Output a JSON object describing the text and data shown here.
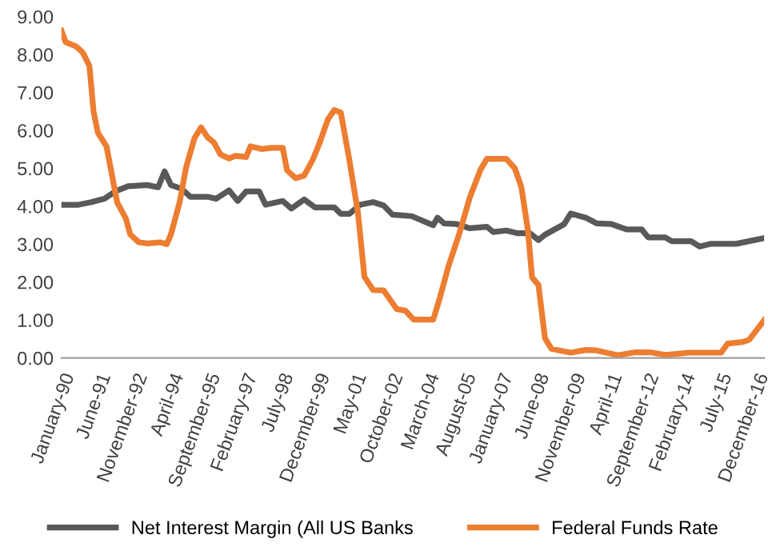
{
  "chart_data": {
    "type": "line",
    "legend": "bottom",
    "grid": false,
    "marker": "none",
    "line_style": "solid",
    "xlim": [
      "1990-01",
      "2017-04"
    ],
    "xticks": [
      {
        "value": "1990-01",
        "label": "January-90"
      },
      {
        "value": "1991-06",
        "label": "June-91"
      },
      {
        "value": "1992-11",
        "label": "November-92"
      },
      {
        "value": "1994-04",
        "label": "April-94"
      },
      {
        "value": "1995-09",
        "label": "September-95"
      },
      {
        "value": "1997-02",
        "label": "February-97"
      },
      {
        "value": "1998-07",
        "label": "July-98"
      },
      {
        "value": "1999-12",
        "label": "December-99"
      },
      {
        "value": "2001-05",
        "label": "May-01"
      },
      {
        "value": "2002-10",
        "label": "October-02"
      },
      {
        "value": "2004-03",
        "label": "March-04"
      },
      {
        "value": "2005-08",
        "label": "August-05"
      },
      {
        "value": "2007-01",
        "label": "January-07"
      },
      {
        "value": "2008-06",
        "label": "June-08"
      },
      {
        "value": "2009-11",
        "label": "November-09"
      },
      {
        "value": "2011-04",
        "label": "April-11"
      },
      {
        "value": "2012-09",
        "label": "September-12"
      },
      {
        "value": "2014-02",
        "label": "February-14"
      },
      {
        "value": "2015-07",
        "label": "July-15"
      },
      {
        "value": "2016-12",
        "label": "December-16"
      }
    ],
    "ylim": [
      0,
      9
    ],
    "yticks": [
      {
        "value": 0,
        "label": "0.00"
      },
      {
        "value": 1,
        "label": "1.00"
      },
      {
        "value": 2,
        "label": "2.00"
      },
      {
        "value": 3,
        "label": "3.00"
      },
      {
        "value": 4,
        "label": "4.00"
      },
      {
        "value": 5,
        "label": "5.00"
      },
      {
        "value": 6,
        "label": "6.00"
      },
      {
        "value": 7,
        "label": "7.00"
      },
      {
        "value": 8,
        "label": "8.00"
      },
      {
        "value": 9,
        "label": "9.00"
      }
    ],
    "series": [
      {
        "name": "Net Interest Margin (All US Banks",
        "color": "#595959",
        "x": [
          "1990-01",
          "1990-09",
          "1991-03",
          "1991-09",
          "1992-02",
          "1992-08",
          "1993-05",
          "1993-10",
          "1994-01",
          "1994-04",
          "1994-09",
          "1995-01",
          "1995-09",
          "1996-01",
          "1996-07",
          "1996-11",
          "1997-03",
          "1997-09",
          "1997-12",
          "1998-08",
          "1998-12",
          "1999-06",
          "1999-11",
          "2000-08",
          "2000-11",
          "2001-03",
          "2001-08",
          "2002-02",
          "2002-07",
          "2002-11",
          "2003-08",
          "2004-06",
          "2004-08",
          "2004-11",
          "2005-05",
          "2005-11",
          "2006-07",
          "2006-10",
          "2007-04",
          "2007-09",
          "2008-03",
          "2008-07",
          "2008-10",
          "2009-07",
          "2009-10",
          "2010-05",
          "2010-10",
          "2011-05",
          "2011-12",
          "2012-07",
          "2012-10",
          "2013-06",
          "2013-09",
          "2014-06",
          "2014-10",
          "2015-03",
          "2016-03",
          "2017-03"
        ],
        "values": [
          4.04,
          4.04,
          4.11,
          4.2,
          4.39,
          4.53,
          4.56,
          4.5,
          4.92,
          4.56,
          4.46,
          4.25,
          4.25,
          4.2,
          4.42,
          4.14,
          4.39,
          4.39,
          4.04,
          4.14,
          3.94,
          4.18,
          3.97,
          3.97,
          3.8,
          3.8,
          4.04,
          4.11,
          4.02,
          3.78,
          3.74,
          3.5,
          3.7,
          3.55,
          3.53,
          3.42,
          3.46,
          3.32,
          3.36,
          3.29,
          3.29,
          3.11,
          3.25,
          3.53,
          3.81,
          3.7,
          3.55,
          3.53,
          3.39,
          3.39,
          3.18,
          3.18,
          3.08,
          3.08,
          2.94,
          3.01,
          3.01,
          3.15
        ]
      },
      {
        "name": "Federal Funds Rate",
        "color": "#ed7d31",
        "x": [
          "1990-01",
          "1990-03",
          "1990-08",
          "1990-11",
          "1991-02",
          "1991-04",
          "1991-06",
          "1991-10",
          "1992-03",
          "1992-07",
          "1992-09",
          "1993-01",
          "1993-05",
          "1993-11",
          "1994-02",
          "1994-04",
          "1994-08",
          "1994-11",
          "1995-03",
          "1995-06",
          "1995-09",
          "1995-12",
          "1996-03",
          "1996-07",
          "1996-10",
          "1997-03",
          "1997-05",
          "1997-10",
          "1998-03",
          "1998-08",
          "1998-10",
          "1999-02",
          "1999-06",
          "1999-10",
          "2000-01",
          "2000-05",
          "2000-08",
          "2000-11",
          "2001-03",
          "2001-07",
          "2001-10",
          "2002-02",
          "2002-07",
          "2003-01",
          "2003-05",
          "2003-09",
          "2004-06",
          "2004-09",
          "2005-01",
          "2005-06",
          "2005-11",
          "2006-04",
          "2006-07",
          "2007-04",
          "2007-08",
          "2007-11",
          "2008-02",
          "2008-04",
          "2008-07",
          "2008-10",
          "2009-01",
          "2009-10",
          "2010-05",
          "2010-10",
          "2011-08",
          "2012-04",
          "2012-11",
          "2013-06",
          "2013-12",
          "2014-05",
          "2015-08",
          "2015-11",
          "2016-06",
          "2016-09",
          "2017-04"
        ],
        "values": [
          8.63,
          8.33,
          8.21,
          8.05,
          7.7,
          6.5,
          5.94,
          5.58,
          4.1,
          3.68,
          3.26,
          3.05,
          3.02,
          3.05,
          3.0,
          3.26,
          4.1,
          5.02,
          5.8,
          6.08,
          5.82,
          5.68,
          5.37,
          5.26,
          5.33,
          5.3,
          5.58,
          5.51,
          5.54,
          5.54,
          4.95,
          4.74,
          4.81,
          5.23,
          5.65,
          6.29,
          6.54,
          6.47,
          5.23,
          3.83,
          2.14,
          1.79,
          1.78,
          1.29,
          1.25,
          1.01,
          1.01,
          1.57,
          2.41,
          3.25,
          4.23,
          4.96,
          5.25,
          5.25,
          5.0,
          4.51,
          3.39,
          2.13,
          1.92,
          0.52,
          0.24,
          0.14,
          0.21,
          0.2,
          0.07,
          0.15,
          0.15,
          0.08,
          0.11,
          0.14,
          0.14,
          0.38,
          0.42,
          0.48,
          1.0
        ]
      }
    ]
  }
}
